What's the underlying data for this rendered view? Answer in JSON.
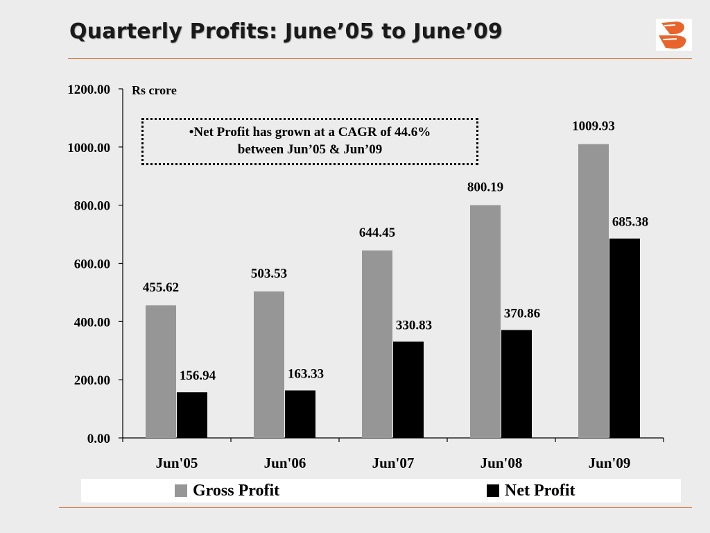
{
  "slide": {
    "title": "Quarterly Profits: June’05 to June’09",
    "logo_icon": "bank-of-baroda-logo"
  },
  "colors": {
    "accent_rule": "#e0703a",
    "gross_profit": "#969696",
    "net_profit": "#000000",
    "logo_orange": "#e8642c"
  },
  "callout": {
    "text_line1": "•Net Profit has grown at a CAGR of 44.6%",
    "text_line2": "between Jun’05 & Jun’09"
  },
  "chart_data": {
    "type": "bar",
    "unit_label": "Rs crore",
    "categories": [
      "Jun'05",
      "Jun'06",
      "Jun'07",
      "Jun'08",
      "Jun'09"
    ],
    "series": [
      {
        "name": "Gross Profit",
        "values": [
          455.62,
          503.53,
          644.45,
          800.19,
          1009.93
        ],
        "labels": [
          "455.62",
          "503.53",
          "644.45",
          "800.19",
          "1009.93"
        ]
      },
      {
        "name": "Net Profit",
        "values": [
          156.94,
          163.33,
          330.83,
          370.86,
          685.38
        ],
        "labels": [
          "156.94",
          "163.33",
          "330.83",
          "370.86",
          "685.38"
        ]
      }
    ],
    "ylim": [
      0,
      1200
    ],
    "yticks": [
      0,
      200,
      400,
      600,
      800,
      1000,
      1200
    ],
    "ytick_labels": [
      "0.00",
      "200.00",
      "400.00",
      "600.00",
      "800.00",
      "1000.00",
      "1200.00"
    ],
    "grid": false,
    "legend_position": "bottom"
  }
}
